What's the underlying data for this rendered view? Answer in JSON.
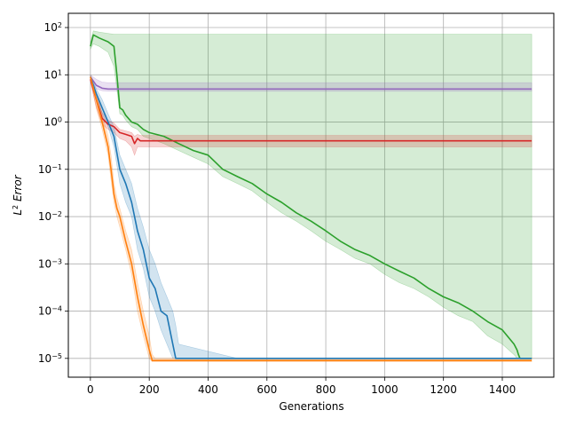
{
  "chart_data": {
    "type": "line",
    "title": "",
    "xlabel": "Generations",
    "ylabel": "L² Error",
    "ylabel_parts": {
      "base": "L",
      "sup": "2",
      "rest": " Error"
    },
    "xlim": [
      -75,
      1575
    ],
    "ylim": [
      4e-06,
      200
    ],
    "yscale": "log",
    "grid": true,
    "xticks": [
      0,
      200,
      400,
      600,
      800,
      1000,
      1200,
      1400
    ],
    "yticks": [
      {
        "exp": -5,
        "label": "10",
        "sup": "−5"
      },
      {
        "exp": -4,
        "label": "10",
        "sup": "−4"
      },
      {
        "exp": -3,
        "label": "10",
        "sup": "−3"
      },
      {
        "exp": -2,
        "label": "10",
        "sup": "−2"
      },
      {
        "exp": -1,
        "label": "10",
        "sup": "−1"
      },
      {
        "exp": 0,
        "label": "10",
        "sup": "0"
      },
      {
        "exp": 1,
        "label": "10",
        "sup": "1"
      },
      {
        "exp": 2,
        "label": "10",
        "sup": "2"
      }
    ],
    "series": [
      {
        "color": "#2ca02c",
        "x": [
          0,
          10,
          30,
          60,
          80,
          90,
          100,
          110,
          120,
          140,
          160,
          180,
          200,
          250,
          300,
          350,
          400,
          450,
          500,
          550,
          600,
          650,
          700,
          750,
          800,
          850,
          900,
          950,
          1000,
          1050,
          1100,
          1150,
          1200,
          1250,
          1300,
          1350,
          1400,
          1440,
          1450,
          1455,
          1460,
          1500
        ],
        "y": [
          40,
          70,
          60,
          50,
          40,
          10,
          2,
          1.8,
          1.4,
          1.0,
          0.9,
          0.7,
          0.6,
          0.5,
          0.35,
          0.25,
          0.2,
          0.1,
          0.07,
          0.05,
          0.03,
          0.02,
          0.012,
          0.008,
          0.005,
          0.003,
          0.002,
          0.0015,
          0.001,
          0.0007,
          0.0005,
          0.0003,
          0.0002,
          0.00015,
          0.0001,
          6e-05,
          4e-05,
          2e-05,
          1.5e-05,
          1.2e-05,
          1e-05,
          1e-05
        ],
        "upper": [
          50,
          85,
          80,
          75,
          72,
          72,
          72,
          72,
          72,
          72,
          72,
          72,
          72,
          72,
          72,
          72,
          72,
          72,
          72,
          72,
          72,
          72,
          72,
          72,
          72,
          72,
          72,
          72,
          72,
          72,
          72,
          72,
          72,
          72,
          72,
          72,
          72,
          72,
          72,
          72,
          72,
          72
        ],
        "lower": [
          35,
          45,
          40,
          30,
          15,
          5,
          1.5,
          1.4,
          1.1,
          0.8,
          0.7,
          0.5,
          0.45,
          0.35,
          0.25,
          0.18,
          0.13,
          0.07,
          0.05,
          0.035,
          0.02,
          0.012,
          0.008,
          0.005,
          0.003,
          0.002,
          0.0013,
          0.001,
          0.0006,
          0.0004,
          0.0003,
          0.0002,
          0.00012,
          8e-05,
          6e-05,
          3e-05,
          2e-05,
          1.2e-05,
          1e-05,
          1e-05,
          1e-05,
          1e-05
        ]
      },
      {
        "color": "#9467bd",
        "x": [
          0,
          20,
          40,
          60,
          100,
          500,
          1000,
          1500
        ],
        "y": [
          9,
          6,
          5.2,
          5.0,
          5.0,
          5.0,
          5.0,
          5.0
        ],
        "upper": [
          10,
          8,
          7,
          6.8,
          6.8,
          6.8,
          6.8,
          6.8
        ],
        "lower": [
          8,
          5,
          4.6,
          4.5,
          4.5,
          4.5,
          4.5,
          4.5
        ]
      },
      {
        "color": "#d62728",
        "x": [
          0,
          20,
          40,
          60,
          80,
          100,
          120,
          140,
          150,
          160,
          170,
          200,
          500,
          1000,
          1500
        ],
        "y": [
          8,
          3,
          1.2,
          0.9,
          0.8,
          0.6,
          0.55,
          0.5,
          0.35,
          0.45,
          0.4,
          0.4,
          0.4,
          0.4,
          0.4
        ],
        "upper": [
          9,
          4,
          1.6,
          1.1,
          0.95,
          0.7,
          0.65,
          0.6,
          0.5,
          0.55,
          0.52,
          0.52,
          0.52,
          0.52,
          0.52
        ],
        "lower": [
          7,
          2,
          0.9,
          0.7,
          0.6,
          0.45,
          0.4,
          0.3,
          0.2,
          0.3,
          0.3,
          0.3,
          0.3,
          0.3,
          0.3
        ]
      },
      {
        "color": "#1f77b4",
        "x": [
          0,
          20,
          40,
          60,
          80,
          100,
          120,
          140,
          160,
          180,
          200,
          220,
          240,
          260,
          280,
          290,
          300,
          500,
          1000,
          1500
        ],
        "y": [
          9,
          4,
          2,
          1.0,
          0.5,
          0.1,
          0.05,
          0.02,
          0.005,
          0.002,
          0.0005,
          0.0003,
          0.0001,
          8e-05,
          2e-05,
          1e-05,
          1e-05,
          1e-05,
          1e-05,
          1e-05
        ],
        "upper": [
          10,
          5,
          3,
          1.5,
          0.8,
          0.2,
          0.1,
          0.05,
          0.015,
          0.006,
          0.002,
          0.001,
          0.0004,
          0.0002,
          0.0001,
          5e-05,
          2e-05,
          1e-05,
          1e-05,
          1e-05
        ],
        "lower": [
          8,
          3,
          1.5,
          0.8,
          0.3,
          0.05,
          0.02,
          0.01,
          0.002,
          0.0008,
          0.0002,
          0.0001,
          4e-05,
          2e-05,
          1e-05,
          1e-05,
          1e-05,
          1e-05,
          1e-05,
          1e-05
        ]
      },
      {
        "color": "#ff7f0e",
        "x": [
          0,
          20,
          40,
          60,
          70,
          80,
          90,
          100,
          120,
          140,
          160,
          180,
          200,
          210,
          220,
          500,
          1000,
          1500
        ],
        "y": [
          9,
          3,
          1.0,
          0.3,
          0.1,
          0.03,
          0.015,
          0.01,
          0.003,
          0.001,
          0.0002,
          5e-05,
          1.5e-05,
          9e-06,
          9e-06,
          9e-06,
          9e-06,
          9e-06
        ],
        "upper": [
          10,
          4,
          1.5,
          0.5,
          0.2,
          0.05,
          0.025,
          0.015,
          0.005,
          0.002,
          0.0004,
          0.0001,
          3e-05,
          1.2e-05,
          1e-05,
          1e-05,
          1e-05,
          1e-05
        ],
        "lower": [
          8,
          2,
          0.7,
          0.2,
          0.06,
          0.02,
          0.01,
          0.006,
          0.002,
          0.0006,
          0.0001,
          3e-05,
          1e-05,
          8.5e-06,
          8.5e-06,
          8.5e-06,
          8.5e-06,
          8.5e-06
        ]
      }
    ]
  }
}
